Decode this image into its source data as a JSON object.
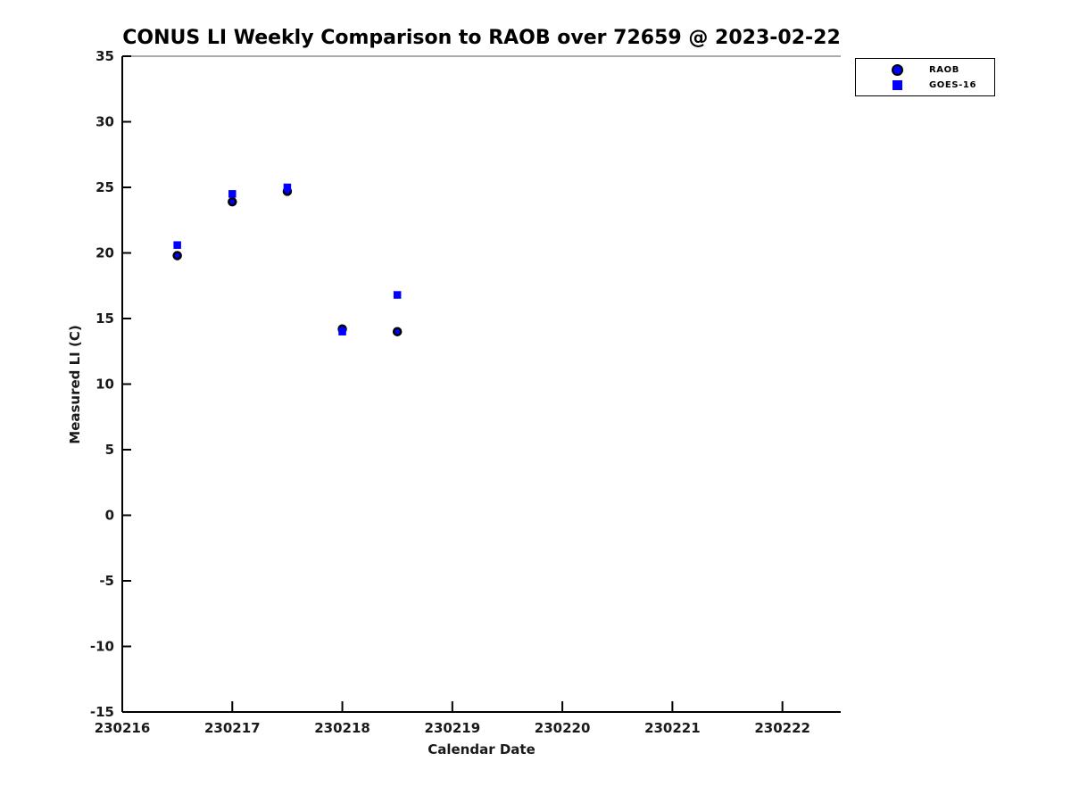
{
  "title": "CONUS LI Weekly Comparison to RAOB over 72659 @ 2023-02-22",
  "chart_data": {
    "type": "scatter",
    "title": "CONUS LI Weekly Comparison to RAOB over 72659 @ 2023-02-22",
    "xlabel": "Calendar Date",
    "ylabel": "Measured LI (C)",
    "xlim": [
      230216,
      230222.53
    ],
    "ylim": [
      -15,
      35
    ],
    "x_ticks": [
      "230216",
      "230217",
      "230218",
      "230219",
      "230220",
      "230221",
      "230222"
    ],
    "y_ticks": [
      "35",
      "30",
      "25",
      "20",
      "15",
      "10",
      "5",
      "0",
      "-5",
      "-10",
      "-15"
    ],
    "grid": false,
    "legend_position": "top-right-outside",
    "colors": {
      "marker_blue": "#0000ff",
      "marker_edge_black": "#000000",
      "axis_black": "#000000"
    },
    "series": [
      {
        "name": "RAOB",
        "marker": "circle",
        "fill": "#0000ff",
        "edge": "#000000",
        "x": [
          230216.5,
          230217.0,
          230217.5,
          230218.0,
          230218.5
        ],
        "y": [
          19.8,
          23.9,
          24.7,
          14.2,
          14.0
        ]
      },
      {
        "name": "GOES-16",
        "marker": "square",
        "fill": "#0000ff",
        "edge": "#0000ff",
        "x": [
          230216.5,
          230217.0,
          230217.5,
          230218.0,
          230218.5
        ],
        "y": [
          20.6,
          24.5,
          25.0,
          14.0,
          16.8
        ]
      }
    ]
  }
}
